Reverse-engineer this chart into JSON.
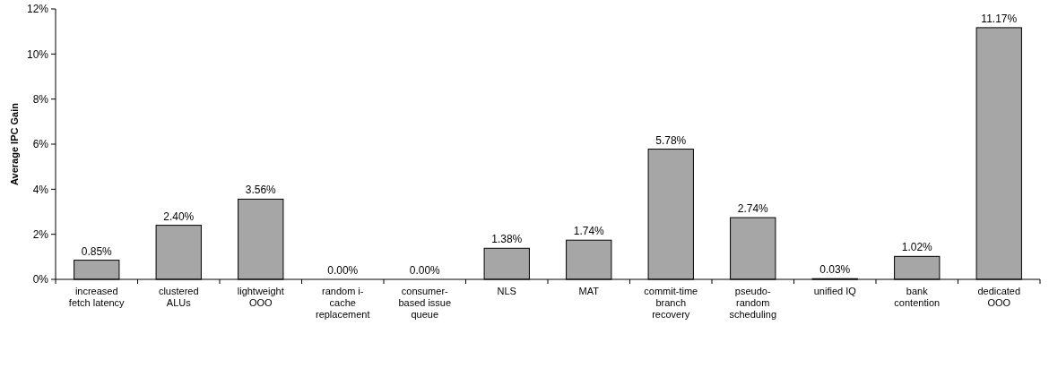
{
  "chart_data": {
    "type": "bar",
    "ylabel": "Average IPC Gain",
    "categories": [
      "increased fetch latency",
      "clustered ALUs",
      "lightweight OOO",
      "random i-cache replacement",
      "consumer-based issue queue",
      "NLS",
      "MAT",
      "commit-time branch recovery",
      "pseudo-random scheduling",
      "unified IQ",
      "bank contention",
      "dedicated OOO"
    ],
    "values": [
      0.85,
      2.4,
      3.56,
      0.0,
      0.0,
      1.38,
      1.74,
      5.78,
      2.74,
      0.03,
      1.02,
      11.17
    ],
    "value_labels": [
      "0.85%",
      "2.40%",
      "3.56%",
      "0.00%",
      "0.00%",
      "1.38%",
      "1.74%",
      "5.78%",
      "2.74%",
      "0.03%",
      "1.02%",
      "11.17%"
    ],
    "color": "#a6a6a6",
    "ylim": [
      0,
      12
    ],
    "yticks": [
      {
        "value": 0,
        "label": "0%"
      },
      {
        "value": 2,
        "label": "2%"
      },
      {
        "value": 4,
        "label": "4%"
      },
      {
        "value": 6,
        "label": "6%"
      },
      {
        "value": 8,
        "label": "8%"
      },
      {
        "value": 10,
        "label": "10%"
      },
      {
        "value": 12,
        "label": "12%"
      }
    ],
    "grid": false
  }
}
